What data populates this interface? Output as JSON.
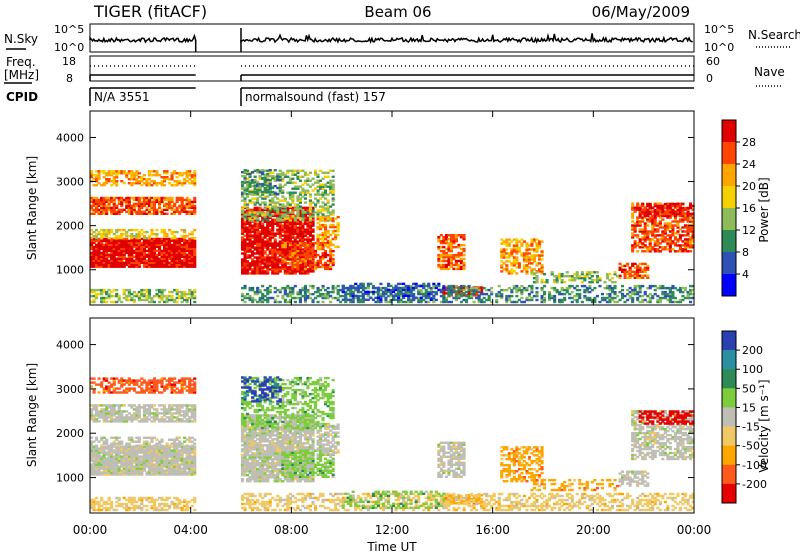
{
  "header": {
    "radar": "TIGER (fitACF)",
    "beam": "Beam 06",
    "date": "06/May/2009"
  },
  "side_labels": {
    "nsky": "N.Sky",
    "freq_line1": "Freq.",
    "freq_line2": "[MHz]",
    "cpid": "CPID",
    "nsearch": "N.Search",
    "nave": "Nave"
  },
  "chart_data": [
    {
      "type": "line",
      "name": "noise-strip",
      "series": [
        {
          "name": "N.Sky",
          "style": "solid"
        },
        {
          "name": "N.Search",
          "style": "dotted"
        }
      ],
      "left_ticks": [
        "10^5",
        "10^0"
      ],
      "right_ticks": [
        "10^5",
        "10^0"
      ],
      "gaps_ut_hours": [
        [
          4.2,
          6.0
        ]
      ]
    },
    {
      "type": "line",
      "name": "freq-nave-strip",
      "series": [
        {
          "name": "Freq.",
          "unit": "MHz",
          "style": "solid"
        },
        {
          "name": "Nave",
          "style": "dotted"
        }
      ],
      "left_ticks": [
        "18",
        "8"
      ],
      "right_ticks": [
        "60",
        "0"
      ],
      "gaps_ut_hours": [
        [
          4.2,
          6.0
        ]
      ]
    },
    {
      "type": "table",
      "name": "cpid-strip",
      "segments": [
        {
          "start_ut": 0,
          "end_ut": 4.2,
          "label": "N/A 3551"
        },
        {
          "start_ut": 6.0,
          "end_ut": 24,
          "label": "normalsound (fast) 157"
        }
      ]
    },
    {
      "type": "heatmap",
      "name": "power-rti",
      "ylabel": "Slant Range [km]",
      "ylim": [
        200,
        4600
      ],
      "yticks": [
        "1000",
        "2000",
        "3000",
        "4000"
      ],
      "xlim": [
        0,
        24
      ],
      "colorbar": {
        "label": "Power [dB]",
        "ticks": [
          "4",
          "8",
          "12",
          "16",
          "20",
          "24",
          "28"
        ],
        "colors": [
          "#0000ff",
          "#2d52b4",
          "#2e8b57",
          "#8fbc5a",
          "#f5d100",
          "#ffa500",
          "#ff4500",
          "#e00000"
        ]
      }
    },
    {
      "type": "heatmap",
      "name": "velocity-rti",
      "ylabel": "Slant Range [km]",
      "ylim": [
        200,
        4600
      ],
      "yticks": [
        "1000",
        "2000",
        "3000",
        "4000"
      ],
      "xlim": [
        0,
        24
      ],
      "xlabel": "Time UT",
      "xticks": [
        "00:00",
        "04:00",
        "08:00",
        "12:00",
        "16:00",
        "20:00",
        "00:00"
      ],
      "colorbar": {
        "label": "Velocity [m s⁻¹]",
        "ticks": [
          "200",
          "100",
          "50",
          "15",
          "-15",
          "-50",
          "-100",
          "-200"
        ],
        "colors": [
          "#2a3fb0",
          "#2a8fa0",
          "#2e8b57",
          "#7ccd3c",
          "#bebeb4",
          "#f0c864",
          "#ffa500",
          "#ff5a1e",
          "#e60000"
        ]
      }
    }
  ]
}
